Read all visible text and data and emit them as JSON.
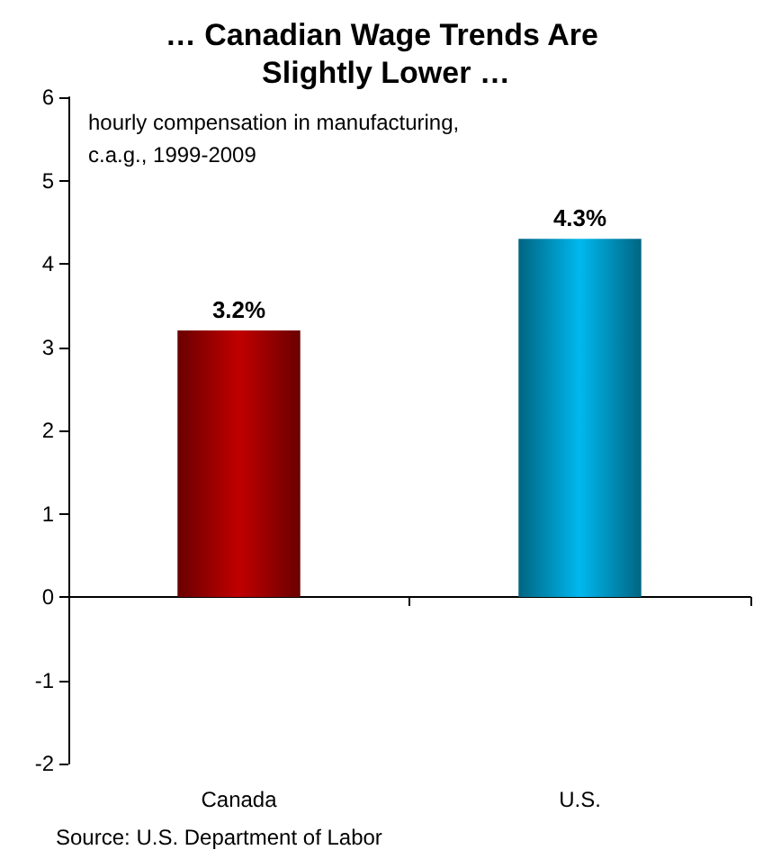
{
  "chart_data": {
    "type": "bar",
    "title": "… Canadian Wage Trends Are Slightly Lower …",
    "subtitle": "hourly compensation in manufacturing,\nc.a.g., 1999-2009",
    "categories": [
      "Canada",
      "U.S."
    ],
    "values": [
      3.2,
      4.3
    ],
    "colors": [
      "#c00000",
      "#00b8ee"
    ],
    "value_labels": [
      "3.2%",
      "4.3%"
    ],
    "ylim": [
      -2,
      6
    ],
    "yticks": [
      -2,
      -1,
      0,
      1,
      2,
      3,
      4,
      5,
      6
    ],
    "annotations": [
      "Source: U.S. Department of Labor"
    ]
  }
}
